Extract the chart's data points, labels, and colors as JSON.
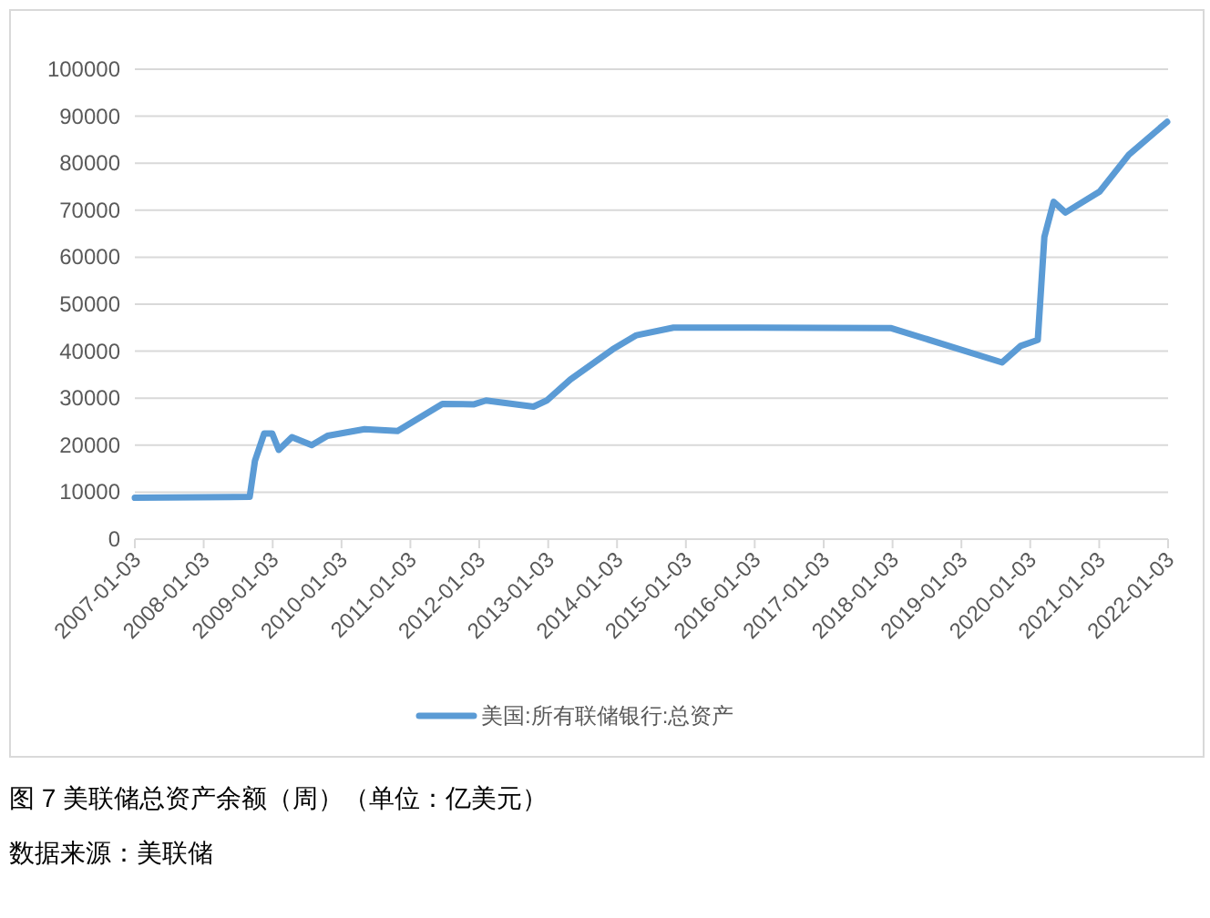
{
  "chart_data": {
    "type": "line",
    "x": [
      "2007-01-03",
      "2008-09-03",
      "2008-10-01",
      "2008-11-19",
      "2008-12-31",
      "2009-02-04",
      "2009-04-15",
      "2009-07-29",
      "2009-10-21",
      "2010-05-05",
      "2010-10-27",
      "2011-06-22",
      "2011-12-07",
      "2012-02-08",
      "2012-10-17",
      "2012-12-26",
      "2013-05-01",
      "2013-12-11",
      "2014-04-16",
      "2014-10-29",
      "2015-12-30",
      "2017-12-27",
      "2019-08-07",
      "2019-11-13",
      "2020-02-12",
      "2020-03-18",
      "2020-05-06",
      "2020-07-08",
      "2021-01-06",
      "2021-06-09",
      "2021-12-29"
    ],
    "series": [
      {
        "name": "美国:所有联储银行:总资产",
        "color": "#5b9bd5",
        "values": [
          8800,
          9000,
          16700,
          22500,
          22500,
          19000,
          21700,
          20000,
          22000,
          23400,
          23000,
          28800,
          28700,
          29500,
          28200,
          29500,
          34000,
          40400,
          43400,
          45000,
          45000,
          44900,
          37600,
          41100,
          42400,
          64300,
          71800,
          69500,
          74000,
          81800,
          88800
        ]
      }
    ],
    "xlim": [
      "2007-01-03",
      "2022-01-03"
    ],
    "xticks": [
      "2007-01-03",
      "2008-01-03",
      "2009-01-03",
      "2010-01-03",
      "2011-01-03",
      "2012-01-03",
      "2013-01-03",
      "2014-01-03",
      "2015-01-03",
      "2016-01-03",
      "2017-01-03",
      "2018-01-03",
      "2019-01-03",
      "2020-01-03",
      "2021-01-03",
      "2022-01-03"
    ],
    "ylim": [
      0,
      100000
    ],
    "yticks": [
      0,
      10000,
      20000,
      30000,
      40000,
      50000,
      60000,
      70000,
      80000,
      90000,
      100000
    ],
    "grid": "y",
    "legend": "bottom",
    "annotations": [
      "图 7 美联储总资产余额（周）（单位：亿美元）",
      "数据来源：美联储"
    ]
  }
}
